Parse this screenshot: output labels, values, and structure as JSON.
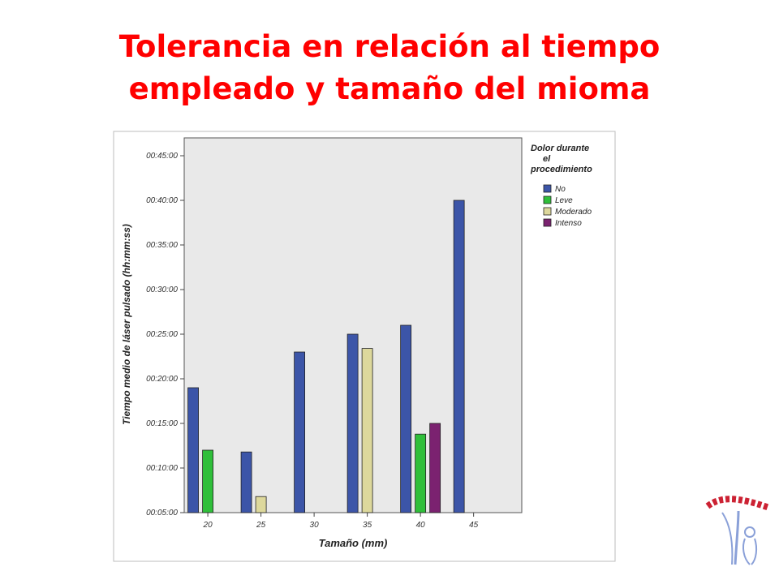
{
  "slide": {
    "title_line1": "Tolerancia en relación al tiempo",
    "title_line2": "empleado y tamaño del mioma"
  },
  "colors": {
    "title": "#ff0000",
    "plot_background": "#e9e9e9",
    "No": "#3c55a8",
    "Leve": "#2fbf3a",
    "Moderado": "#ddd89c",
    "Intenso": "#7b2270"
  },
  "chart_data": {
    "type": "bar",
    "title": "",
    "xlabel": "Tamaño (mm)",
    "ylabel": "Tiempo medio de láser pulsado (hh:mm:ss)",
    "categories": [
      "20",
      "25",
      "30",
      "35",
      "40",
      "45"
    ],
    "y_unit": "minutes",
    "ylim": [
      5,
      47
    ],
    "yticks": [
      5,
      10,
      15,
      20,
      25,
      30,
      35,
      40,
      45
    ],
    "ytick_labels": [
      "00:05:00",
      "00:10:00",
      "00:15:00",
      "00:20:00",
      "00:25:00",
      "00:30:00",
      "00:35:00",
      "00:40:00",
      "00:45:00"
    ],
    "legend_title": "Dolor durante el procedimiento",
    "legend_position": "right",
    "series": [
      {
        "name": "No",
        "values": [
          19,
          11.8,
          23,
          25,
          26,
          40
        ]
      },
      {
        "name": "Leve",
        "values": [
          12,
          null,
          null,
          null,
          13.8,
          null
        ]
      },
      {
        "name": "Moderado",
        "values": [
          null,
          6.8,
          null,
          23.4,
          null,
          null
        ]
      },
      {
        "name": "Intenso",
        "values": [
          null,
          null,
          null,
          null,
          15,
          null
        ]
      }
    ],
    "grid": false
  }
}
